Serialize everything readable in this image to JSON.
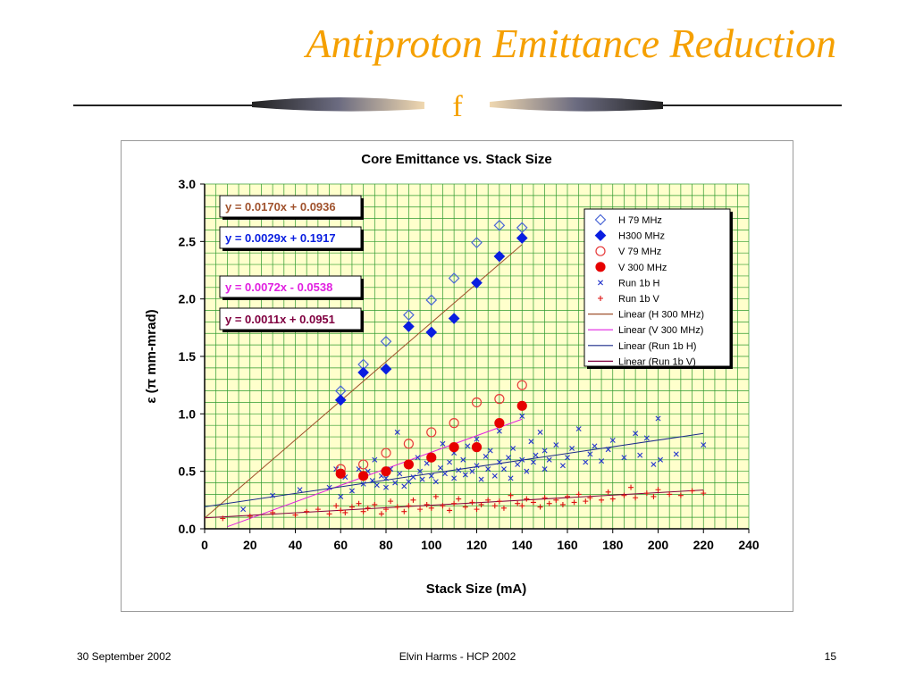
{
  "slide": {
    "title": "Antiproton Emittance Reduction",
    "divider_glyph": "f",
    "footer_left": "30 September 2002",
    "footer_center": "Elvin Harms - HCP 2002",
    "footer_right": "15"
  },
  "colors": {
    "title": "#f5a000",
    "plot_bg": "#ffffcc",
    "grid": "#2e9a2e",
    "h79": "#4a66d6",
    "h300": "#0a1ee0",
    "v79": "#e63a3a",
    "v300": "#e60000",
    "run1bH": "#2233cc",
    "run1bV": "#dd1111"
  },
  "chart_data": {
    "type": "scatter",
    "title": "Core Emittance vs. Stack Size",
    "xlabel": "Stack Size (mA)",
    "ylabel": "ε (π mm-mrad)",
    "xlim": [
      0,
      240
    ],
    "ylim": [
      0,
      3.0
    ],
    "xticks": [
      "0",
      "20",
      "40",
      "60",
      "80",
      "100",
      "120",
      "140",
      "160",
      "180",
      "200",
      "220",
      "240"
    ],
    "yticks": [
      "0.0",
      "0.5",
      "1.0",
      "1.5",
      "2.0",
      "2.5",
      "3.0"
    ],
    "grid": true,
    "legend_position": "top-right",
    "equations": [
      {
        "text": "y = 0.0170x + 0.0936",
        "color": "#a0522d"
      },
      {
        "text": "y = 0.0029x + 0.1917",
        "color": "#0a1ee0"
      },
      {
        "text": "y = 0.0072x - 0.0538",
        "color": "#e020e0"
      },
      {
        "text": "y = 0.0011x + 0.0951",
        "color": "#800040"
      }
    ],
    "series": [
      {
        "name": "H 79 MHz",
        "marker": "diamond-open",
        "color": "#4a66d6",
        "x": [
          60,
          70,
          80,
          90,
          100,
          110,
          120,
          130,
          140
        ],
        "y": [
          1.2,
          1.43,
          1.63,
          1.86,
          1.99,
          2.18,
          2.49,
          2.64,
          2.62
        ]
      },
      {
        "name": "H300 MHz",
        "marker": "diamond-filled",
        "color": "#0a1ee0",
        "x": [
          60,
          70,
          80,
          90,
          100,
          110,
          120,
          130,
          140
        ],
        "y": [
          1.12,
          1.36,
          1.39,
          1.76,
          1.71,
          1.83,
          2.14,
          2.37,
          2.53
        ]
      },
      {
        "name": "V 79 MHz",
        "marker": "circle-open",
        "color": "#e63a3a",
        "x": [
          60,
          70,
          80,
          90,
          100,
          110,
          120,
          130,
          140
        ],
        "y": [
          0.52,
          0.56,
          0.66,
          0.74,
          0.84,
          0.92,
          1.1,
          1.13,
          1.25
        ]
      },
      {
        "name": "V 300 MHz",
        "marker": "circle-filled",
        "color": "#e60000",
        "x": [
          60,
          70,
          80,
          90,
          100,
          110,
          120,
          130,
          140
        ],
        "y": [
          0.48,
          0.46,
          0.5,
          0.56,
          0.62,
          0.71,
          0.71,
          0.92,
          1.07
        ]
      },
      {
        "name": "Run 1b H",
        "marker": "x",
        "color": "#2233cc",
        "x": [
          17,
          30,
          42,
          55,
          58,
          60,
          62,
          65,
          68,
          70,
          72,
          74,
          75,
          76,
          78,
          80,
          80,
          82,
          84,
          85,
          86,
          88,
          90,
          90,
          92,
          94,
          95,
          96,
          98,
          100,
          100,
          102,
          104,
          105,
          106,
          108,
          110,
          110,
          112,
          114,
          115,
          116,
          118,
          120,
          120,
          122,
          124,
          125,
          126,
          128,
          130,
          130,
          132,
          134,
          135,
          136,
          138,
          140,
          140,
          142,
          144,
          145,
          146,
          148,
          150,
          150,
          152,
          155,
          158,
          160,
          162,
          165,
          168,
          170,
          172,
          175,
          178,
          180,
          185,
          190,
          192,
          195,
          198,
          200,
          201,
          208,
          220
        ],
        "y": [
          0.17,
          0.29,
          0.34,
          0.36,
          0.52,
          0.28,
          0.45,
          0.33,
          0.52,
          0.39,
          0.5,
          0.42,
          0.6,
          0.38,
          0.46,
          0.44,
          0.36,
          0.52,
          0.4,
          0.84,
          0.48,
          0.37,
          0.41,
          0.55,
          0.45,
          0.62,
          0.5,
          0.43,
          0.57,
          0.46,
          0.62,
          0.41,
          0.53,
          0.74,
          0.48,
          0.58,
          0.44,
          0.66,
          0.51,
          0.6,
          0.47,
          0.72,
          0.5,
          0.55,
          0.78,
          0.43,
          0.63,
          0.52,
          0.68,
          0.46,
          0.58,
          0.85,
          0.52,
          0.62,
          0.44,
          0.7,
          0.56,
          0.98,
          0.6,
          0.5,
          0.76,
          0.58,
          0.64,
          0.84,
          0.52,
          0.68,
          0.6,
          0.73,
          0.55,
          0.62,
          0.7,
          0.87,
          0.58,
          0.65,
          0.72,
          0.59,
          0.69,
          0.77,
          0.62,
          0.83,
          0.64,
          0.79,
          0.56,
          0.96,
          0.6,
          0.65,
          0.73
        ]
      },
      {
        "name": "Run 1b V",
        "marker": "plus",
        "color": "#dd1111",
        "x": [
          8,
          20,
          30,
          40,
          45,
          50,
          55,
          58,
          60,
          62,
          65,
          68,
          70,
          72,
          75,
          78,
          80,
          82,
          85,
          88,
          90,
          92,
          95,
          98,
          100,
          102,
          105,
          108,
          110,
          112,
          115,
          118,
          120,
          122,
          125,
          128,
          130,
          132,
          135,
          138,
          140,
          142,
          145,
          148,
          150,
          152,
          155,
          158,
          160,
          163,
          165,
          168,
          170,
          175,
          178,
          180,
          185,
          188,
          190,
          195,
          198,
          200,
          205,
          210,
          215,
          220
        ],
        "y": [
          0.09,
          0.11,
          0.14,
          0.12,
          0.15,
          0.17,
          0.13,
          0.2,
          0.16,
          0.14,
          0.19,
          0.22,
          0.15,
          0.18,
          0.21,
          0.13,
          0.17,
          0.24,
          0.19,
          0.15,
          0.2,
          0.25,
          0.17,
          0.21,
          0.18,
          0.28,
          0.2,
          0.16,
          0.22,
          0.26,
          0.19,
          0.23,
          0.17,
          0.21,
          0.25,
          0.2,
          0.24,
          0.18,
          0.29,
          0.22,
          0.2,
          0.26,
          0.23,
          0.19,
          0.27,
          0.22,
          0.25,
          0.21,
          0.28,
          0.23,
          0.3,
          0.24,
          0.27,
          0.25,
          0.32,
          0.26,
          0.29,
          0.36,
          0.27,
          0.31,
          0.28,
          0.34,
          0.3,
          0.29,
          0.33,
          0.31
        ]
      }
    ],
    "trendlines": [
      {
        "name": "Linear (H 300 MHz)",
        "color": "#a0522d",
        "slope": 0.017,
        "intercept": 0.0936,
        "x_range": [
          0,
          140
        ]
      },
      {
        "name": "Linear (V 300 MHz)",
        "color": "#e020e0",
        "slope": 0.0072,
        "intercept": -0.0538,
        "x_range": [
          10,
          140
        ]
      },
      {
        "name": "Linear (Run 1b H)",
        "color": "#1a2a8a",
        "slope": 0.0029,
        "intercept": 0.1917,
        "x_range": [
          0,
          220
        ]
      },
      {
        "name": "Linear (Run 1b V)",
        "color": "#800040",
        "slope": 0.0011,
        "intercept": 0.0951,
        "x_range": [
          0,
          220
        ]
      }
    ]
  }
}
